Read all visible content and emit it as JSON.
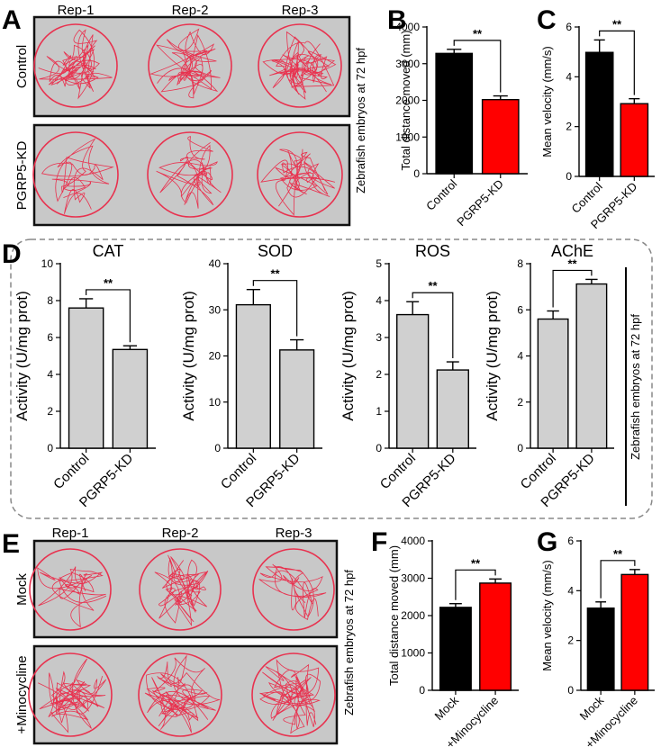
{
  "panels": {
    "A": {
      "letter": "A",
      "reps": [
        "Rep-1",
        "Rep-2",
        "Rep-3"
      ],
      "rows": [
        "Control",
        "PGRP5-KD"
      ],
      "side_label": "Zebrafish embryos at 72 hpf"
    },
    "D": {
      "letter": "D",
      "side_label": "Zebrafish embryos at 72 hpf"
    },
    "E": {
      "letter": "E",
      "reps": [
        "Rep-1",
        "Rep-2",
        "Rep-3"
      ],
      "rows": [
        "Mock",
        "+Minocycline"
      ],
      "side_label": "Zebrafish embryos at 72 hpf"
    }
  },
  "colors": {
    "track": "#e8324f",
    "arena": "#c8c8c8",
    "control": "#000000",
    "treated": "#ff0000",
    "grey_bar": "#d0d0d0"
  },
  "chart_data": [
    {
      "id": "B",
      "letter": "B",
      "type": "bar",
      "categories": [
        "Control",
        "PGRP5-KD"
      ],
      "values": [
        3280,
        2020
      ],
      "errors": [
        110,
        100
      ],
      "colors": [
        "#000000",
        "#ff0000"
      ],
      "ylabel": "Total distance moved (mm)",
      "ylim": [
        0,
        4000
      ],
      "yticks": [
        0,
        1000,
        2000,
        3000,
        4000
      ],
      "significance": "**"
    },
    {
      "id": "C",
      "letter": "C",
      "type": "bar",
      "categories": [
        "Control",
        "PGRP5-KD"
      ],
      "values": [
        4.98,
        2.92
      ],
      "errors": [
        0.5,
        0.2
      ],
      "colors": [
        "#000000",
        "#ff0000"
      ],
      "ylabel": "Mean velocity (mm/s)",
      "ylim": [
        0,
        6
      ],
      "yticks": [
        0,
        2,
        4,
        6
      ],
      "significance": "**"
    },
    {
      "id": "D1",
      "type": "bar",
      "title": "CAT",
      "categories": [
        "Control",
        "PGRP5-KD"
      ],
      "values": [
        7.6,
        5.35
      ],
      "errors": [
        0.5,
        0.2
      ],
      "colors": [
        "#d0d0d0",
        "#d0d0d0"
      ],
      "ylabel": "Activity (U/mg prot)",
      "ylim": [
        0,
        10
      ],
      "yticks": [
        0,
        2,
        4,
        6,
        8,
        10
      ],
      "significance": "**"
    },
    {
      "id": "D2",
      "type": "bar",
      "title": "SOD",
      "categories": [
        "Control",
        "PGRP5-KD"
      ],
      "values": [
        31.1,
        21.3
      ],
      "errors": [
        3.3,
        2.2
      ],
      "colors": [
        "#d0d0d0",
        "#d0d0d0"
      ],
      "ylabel": "Activity (U/mg prot)",
      "ylim": [
        0,
        40
      ],
      "yticks": [
        0,
        10,
        20,
        30,
        40
      ],
      "significance": "**"
    },
    {
      "id": "D3",
      "type": "bar",
      "title": "ROS",
      "categories": [
        "Control",
        "PGRP5-KD"
      ],
      "values": [
        3.62,
        2.12
      ],
      "errors": [
        0.35,
        0.22
      ],
      "colors": [
        "#d0d0d0",
        "#d0d0d0"
      ],
      "ylabel": "Activity (U/mg prot)",
      "ylim": [
        0,
        5
      ],
      "yticks": [
        0,
        1,
        2,
        3,
        4,
        5
      ],
      "significance": "**"
    },
    {
      "id": "D4",
      "type": "bar",
      "title": "AChE",
      "categories": [
        "Control",
        "PGRP5-KD"
      ],
      "values": [
        5.6,
        7.12
      ],
      "errors": [
        0.35,
        0.2
      ],
      "colors": [
        "#d0d0d0",
        "#d0d0d0"
      ],
      "ylabel": "Activity (U/mg prot)",
      "ylim": [
        0,
        8
      ],
      "yticks": [
        0,
        2,
        4,
        6,
        8
      ],
      "significance": "**"
    },
    {
      "id": "F",
      "letter": "F",
      "type": "bar",
      "categories": [
        "Mock",
        "+Minocycline"
      ],
      "values": [
        2220,
        2870
      ],
      "errors": [
        100,
        110
      ],
      "colors": [
        "#000000",
        "#ff0000"
      ],
      "ylabel": "Total distance moved (mm)",
      "ylim": [
        0,
        4000
      ],
      "yticks": [
        0,
        1000,
        2000,
        3000,
        4000
      ],
      "significance": "**"
    },
    {
      "id": "G",
      "letter": "G",
      "type": "bar",
      "categories": [
        "Mock",
        "+Minocycline"
      ],
      "values": [
        3.3,
        4.65
      ],
      "errors": [
        0.25,
        0.2
      ],
      "colors": [
        "#000000",
        "#ff0000"
      ],
      "ylabel": "Mean velocity (mm/s)",
      "ylim": [
        0,
        6
      ],
      "yticks": [
        0,
        2,
        4,
        6
      ],
      "significance": "**"
    }
  ]
}
